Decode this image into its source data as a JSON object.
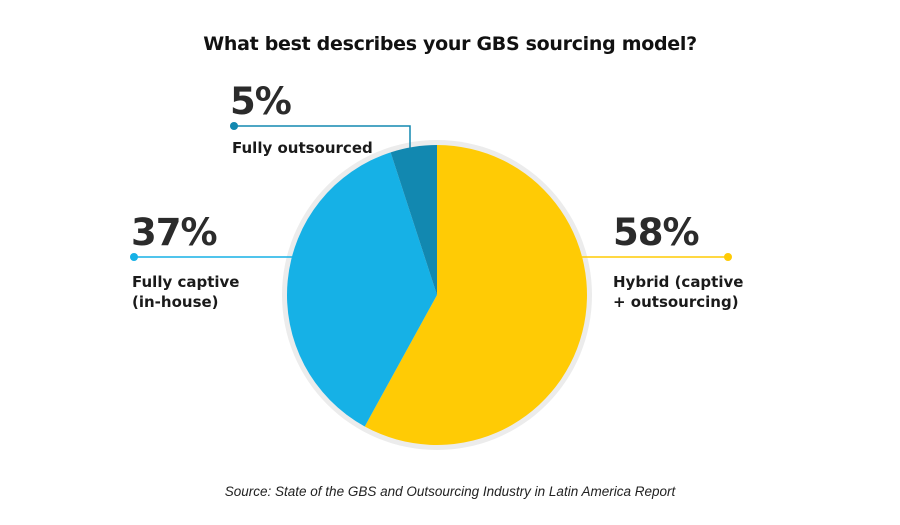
{
  "chart_data": {
    "type": "pie",
    "title": "What best describes your GBS sourcing model?",
    "slices": [
      {
        "label": "Hybrid (captive + outsourcing)",
        "label_lines": [
          "Hybrid (captive",
          "+ outsourcing)"
        ],
        "value": 58,
        "value_label": "58%",
        "color": "#FFCB05"
      },
      {
        "label": "Fully captive (in-house)",
        "label_lines": [
          "Fully captive",
          "(in-house)"
        ],
        "value": 37,
        "value_label": "37%",
        "color": "#16B1E6"
      },
      {
        "label": "Fully outsourced",
        "label_lines": [
          "Fully outsourced"
        ],
        "value": 5,
        "value_label": "5%",
        "color": "#1288B0"
      }
    ],
    "start": "12 o'clock, clockwise",
    "legend": "none",
    "source": "Source: State of the GBS and Outsourcing Industry in Latin America Report"
  }
}
